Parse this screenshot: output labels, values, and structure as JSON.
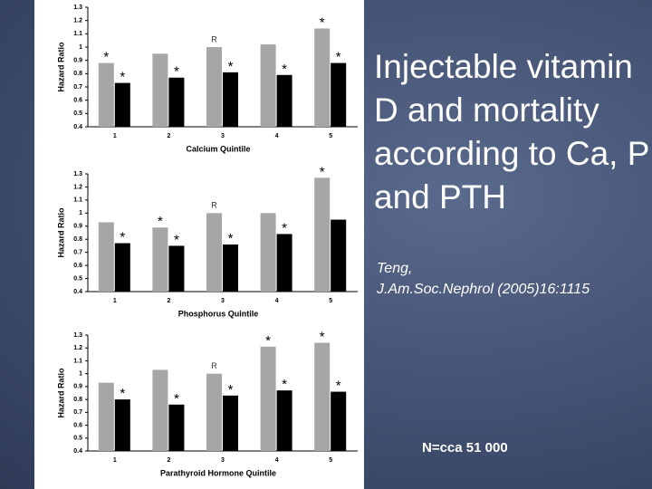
{
  "slide": {
    "title": "Injectable vitamin D and mortality according to Ca, P and PTH",
    "citation": [
      "Teng,",
      "J.Am.Soc.Nephrol (2005)16:1115"
    ],
    "note": "N=cca 51 000"
  },
  "chart_data": [
    {
      "type": "bar",
      "y_label": "Hazard Ratio",
      "x_label": "Calcium Quintile",
      "categories": [
        "1",
        "2",
        "3",
        "4",
        "5"
      ],
      "series": [
        {
          "color": "#a6a6a6",
          "values": [
            0.88,
            0.95,
            1.0,
            1.02,
            1.14
          ],
          "markers": [
            "*",
            null,
            "R",
            null,
            "*"
          ]
        },
        {
          "color": "#000000",
          "values": [
            0.73,
            0.77,
            0.81,
            0.79,
            0.88
          ],
          "markers": [
            "*",
            "*",
            "*",
            "*",
            "*"
          ]
        }
      ],
      "ylim": [
        0.4,
        1.3
      ],
      "yticks": [
        0.4,
        0.5,
        0.6,
        0.7,
        0.8,
        0.9,
        1,
        1.1,
        1.2,
        1.3
      ]
    },
    {
      "type": "bar",
      "y_label": "Hazard Ratio",
      "x_label": "Phosphorus Quintile",
      "categories": [
        "1",
        "2",
        "3",
        "4",
        "5"
      ],
      "series": [
        {
          "color": "#a6a6a6",
          "values": [
            0.93,
            0.89,
            1.0,
            1.0,
            1.27
          ],
          "markers": [
            null,
            "*",
            "R",
            null,
            "*"
          ]
        },
        {
          "color": "#000000",
          "values": [
            0.77,
            0.75,
            0.76,
            0.84,
            0.95
          ],
          "markers": [
            "*",
            "*",
            "*",
            "*",
            null
          ]
        }
      ],
      "ylim": [
        0.4,
        1.3
      ],
      "yticks": [
        0.4,
        0.5,
        0.6,
        0.7,
        0.8,
        0.9,
        1,
        1.1,
        1.2,
        1.3
      ]
    },
    {
      "type": "bar",
      "y_label": "Hazard Ratio",
      "x_label": "Parathyroid Hormone Quintile",
      "categories": [
        "1",
        "2",
        "3",
        "4",
        "5"
      ],
      "series": [
        {
          "color": "#a6a6a6",
          "values": [
            0.93,
            1.03,
            1.0,
            1.21,
            1.24
          ],
          "markers": [
            null,
            null,
            "R",
            "*",
            "*"
          ]
        },
        {
          "color": "#000000",
          "values": [
            0.8,
            0.76,
            0.83,
            0.87,
            0.86
          ],
          "markers": [
            "*",
            "*",
            "*",
            "*",
            "*"
          ]
        }
      ],
      "ylim": [
        0.4,
        1.3
      ],
      "yticks": [
        0.4,
        0.5,
        0.6,
        0.7,
        0.8,
        0.9,
        1,
        1.1,
        1.2,
        1.3
      ]
    }
  ]
}
